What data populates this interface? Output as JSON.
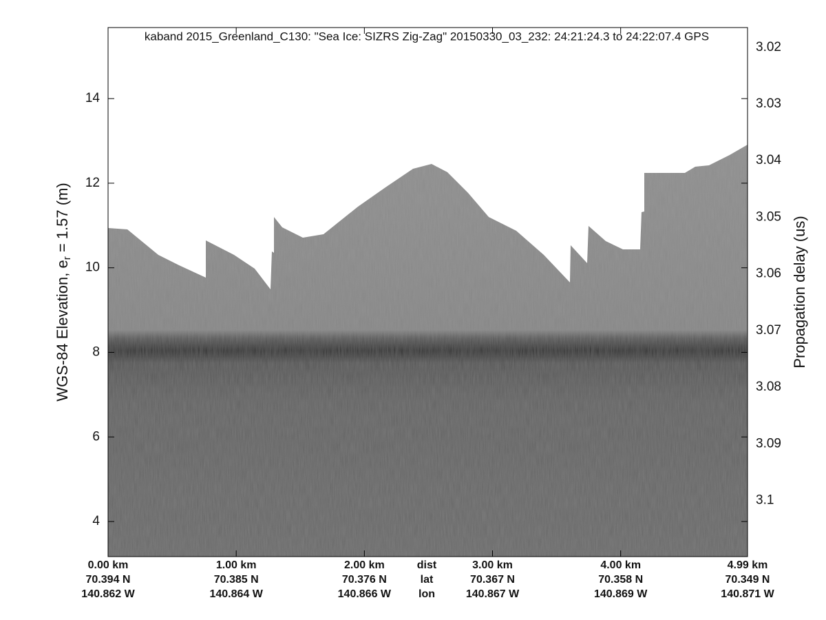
{
  "chart_data": {
    "type": "echogram",
    "title": "kaband 2015_Greenland_C130: \"Sea Ice: SIZRS Zig-Zag\"  20150330_03_232: 24:21:24.3 to 24:22:07.4 GPS",
    "ylabel": "WGS-84 Elevation, e",
    "ylabel_sub": "r",
    "ylabel_rest": " = 1.57 (m)",
    "y2label": "Propagation delay (us)",
    "ylim": [
      3.17,
      15.68
    ],
    "yticks": [
      4,
      6,
      8,
      10,
      12,
      14
    ],
    "y2lim": [
      3.1099,
      3.0165
    ],
    "y2ticks": [
      3.02,
      3.03,
      3.04,
      3.05,
      3.06,
      3.07,
      3.08,
      3.09,
      3.1
    ],
    "xlim": [
      0,
      4.99
    ],
    "xticks": [
      {
        "value": 0,
        "label": "0.00 km"
      },
      {
        "value": 1,
        "label": "1.00 km"
      },
      {
        "value": 2,
        "label": "2.00 km"
      },
      {
        "value": 3,
        "label": "3.00 km"
      },
      {
        "value": 4,
        "label": "4.00 km"
      },
      {
        "value": 4.99,
        "label": "4.99 km"
      }
    ],
    "xtick_lat": [
      "70.394 N",
      "70.385 N",
      "70.376 N",
      "70.367 N",
      "70.358 N",
      "70.349 N"
    ],
    "xtick_lon": [
      "140.862 W",
      "140.864 W",
      "140.866 W",
      "140.867 W",
      "140.869 W",
      "140.871 W"
    ],
    "row_labels": [
      "dist",
      "lat",
      "lon"
    ]
  }
}
